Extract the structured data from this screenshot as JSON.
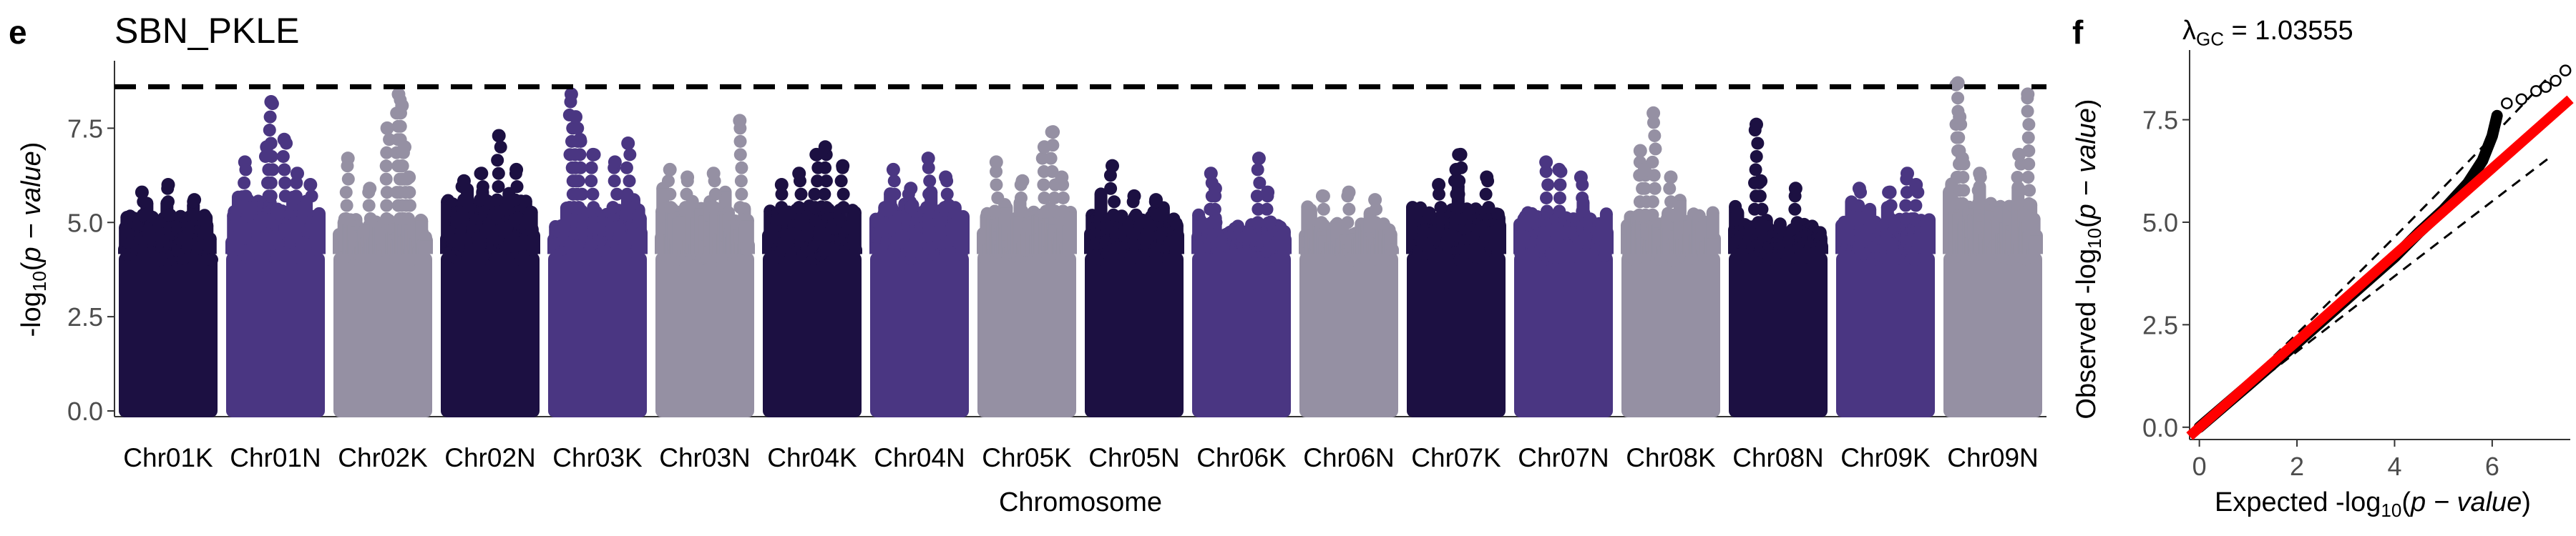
{
  "panel_e": {
    "letter": "e",
    "title": "SBN_PKLE"
  },
  "panel_f": {
    "letter": "f",
    "lambda_symbol": "λ",
    "lambda_sub": "GC",
    "lambda_value": " = 1.03555"
  },
  "chart_data": [
    {
      "type": "scatter",
      "subtype": "manhattan",
      "title": "SBN_PKLE",
      "xlabel": "Chromosome",
      "ylabel": "-log10(p − value)",
      "ylim": [
        0,
        9.1
      ],
      "yticks": [
        "0.0",
        "2.5",
        "5.0",
        "7.5"
      ],
      "threshold_line": 8.6,
      "colors": [
        "#1c1042",
        "#4a3682",
        "#9590a3"
      ],
      "categories": [
        "Chr01K",
        "Chr01N",
        "Chr02K",
        "Chr02N",
        "Chr03K",
        "Chr03N",
        "Chr04K",
        "Chr04N",
        "Chr05K",
        "Chr05N",
        "Chr06K",
        "Chr06N",
        "Chr07K",
        "Chr07N",
        "Chr08K",
        "Chr08N",
        "Chr09K",
        "Chr09N"
      ],
      "series": [
        {
          "values": [
            {
              "chrom": "Chr01K",
              "body_top": 5.2,
              "peaks": [
                [
                  0.2,
                  5.8
                ],
                [
                  0.5,
                  6.0
                ],
                [
                  0.8,
                  5.6
                ]
              ]
            },
            {
              "chrom": "Chr01N",
              "body_top": 5.7,
              "peaks": [
                [
                  0.15,
                  6.6
                ],
                [
                  0.4,
                  7.0
                ],
                [
                  0.45,
                  8.2
                ],
                [
                  0.6,
                  7.2
                ],
                [
                  0.75,
                  6.3
                ],
                [
                  0.9,
                  6.0
                ]
              ]
            },
            {
              "chrom": "Chr02K",
              "body_top": 5.1,
              "peaks": [
                [
                  0.1,
                  6.7
                ],
                [
                  0.35,
                  5.9
                ],
                [
                  0.55,
                  7.5
                ],
                [
                  0.68,
                  8.4
                ],
                [
                  0.72,
                  8.1
                ],
                [
                  0.75,
                  7.0
                ],
                [
                  0.8,
                  6.2
                ]
              ]
            },
            {
              "chrom": "Chr02N",
              "body_top": 5.6,
              "peaks": [
                [
                  0.2,
                  6.1
                ],
                [
                  0.4,
                  6.3
                ],
                [
                  0.6,
                  7.3
                ],
                [
                  0.8,
                  6.4
                ]
              ]
            },
            {
              "chrom": "Chr03K",
              "body_top": 5.4,
              "peaks": [
                [
                  0.2,
                  8.4
                ],
                [
                  0.25,
                  7.8
                ],
                [
                  0.3,
                  7.2
                ],
                [
                  0.45,
                  6.8
                ],
                [
                  0.7,
                  6.6
                ],
                [
                  0.85,
                  7.1
                ]
              ]
            },
            {
              "chrom": "Chr03N",
              "body_top": 5.4,
              "peaks": [
                [
                  0.1,
                  6.4
                ],
                [
                  0.3,
                  6.2
                ],
                [
                  0.6,
                  6.3
                ],
                [
                  0.9,
                  7.7
                ]
              ]
            },
            {
              "chrom": "Chr04K",
              "body_top": 5.4,
              "peaks": [
                [
                  0.15,
                  6.0
                ],
                [
                  0.35,
                  6.3
                ],
                [
                  0.55,
                  6.8
                ],
                [
                  0.65,
                  7.0
                ],
                [
                  0.85,
                  6.5
                ]
              ]
            },
            {
              "chrom": "Chr04N",
              "body_top": 5.4,
              "peaks": [
                [
                  0.2,
                  6.4
                ],
                [
                  0.4,
                  5.9
                ],
                [
                  0.6,
                  6.7
                ],
                [
                  0.8,
                  6.2
                ]
              ]
            },
            {
              "chrom": "Chr05K",
              "body_top": 5.3,
              "peaks": [
                [
                  0.15,
                  6.6
                ],
                [
                  0.45,
                  6.1
                ],
                [
                  0.7,
                  7.0
                ],
                [
                  0.8,
                  7.4
                ],
                [
                  0.9,
                  6.2
                ]
              ]
            },
            {
              "chrom": "Chr05N",
              "body_top": 5.2,
              "peaks": [
                [
                  0.25,
                  6.5
                ],
                [
                  0.5,
                  5.7
                ],
                [
                  0.75,
                  5.6
                ]
              ]
            },
            {
              "chrom": "Chr06K",
              "body_top": 5.0,
              "peaks": [
                [
                  0.15,
                  6.3
                ],
                [
                  0.2,
                  5.9
                ],
                [
                  0.7,
                  6.7
                ],
                [
                  0.8,
                  5.8
                ]
              ]
            },
            {
              "chrom": "Chr06N",
              "body_top": 5.0,
              "peaks": [
                [
                  0.2,
                  5.7
                ],
                [
                  0.5,
                  5.8
                ],
                [
                  0.8,
                  5.6
                ]
              ]
            },
            {
              "chrom": "Chr07K",
              "body_top": 5.4,
              "peaks": [
                [
                  0.3,
                  6.0
                ],
                [
                  0.5,
                  6.4
                ],
                [
                  0.55,
                  6.8
                ],
                [
                  0.85,
                  6.2
                ]
              ]
            },
            {
              "chrom": "Chr07N",
              "body_top": 5.3,
              "peaks": [
                [
                  0.3,
                  6.6
                ],
                [
                  0.45,
                  6.4
                ],
                [
                  0.7,
                  6.2
                ]
              ]
            },
            {
              "chrom": "Chr08K",
              "body_top": 5.2,
              "peaks": [
                [
                  0.15,
                  6.9
                ],
                [
                  0.2,
                  6.4
                ],
                [
                  0.3,
                  7.9
                ],
                [
                  0.5,
                  6.2
                ]
              ]
            },
            {
              "chrom": "Chr08N",
              "body_top": 5.0,
              "peaks": [
                [
                  0.25,
                  7.6
                ],
                [
                  0.3,
                  6.1
                ],
                [
                  0.7,
                  5.9
                ]
              ]
            },
            {
              "chrom": "Chr09K",
              "body_top": 5.1,
              "peaks": [
                [
                  0.2,
                  5.9
                ],
                [
                  0.55,
                  5.8
                ],
                [
                  0.75,
                  6.3
                ],
                [
                  0.85,
                  6.0
                ]
              ]
            },
            {
              "chrom": "Chr09N",
              "body_top": 5.5,
              "peaks": [
                [
                  0.1,
                  8.7
                ],
                [
                  0.12,
                  7.8
                ],
                [
                  0.15,
                  6.7
                ],
                [
                  0.35,
                  6.3
                ],
                [
                  0.8,
                  6.8
                ],
                [
                  0.9,
                  8.4
                ]
              ]
            }
          ]
        }
      ]
    },
    {
      "type": "scatter",
      "subtype": "qq",
      "title": "λGC = 1.03555",
      "xlabel": "Expected -log10(p − value)",
      "ylabel": "Observed -log10(p − value)",
      "xlim": [
        -0.2,
        7.6
      ],
      "ylim": [
        -0.3,
        9.2
      ],
      "xticks": [
        0,
        2,
        4,
        6
      ],
      "yticks": [
        "0.0",
        "2.5",
        "5.0",
        "7.5"
      ],
      "reference_line": {
        "color": "#ff0000"
      },
      "colors": {
        "points": "#000000",
        "ci": "#000000"
      },
      "series": [
        {
          "values": [
            [
              0,
              0
            ],
            [
              1,
              1.02
            ],
            [
              2,
              2.05
            ],
            [
              3,
              3.1
            ],
            [
              4,
              4.15
            ],
            [
              4.5,
              4.75
            ],
            [
              5,
              5.3
            ],
            [
              5.5,
              5.95
            ],
            [
              5.8,
              6.5
            ],
            [
              6,
              7.1
            ],
            [
              6.1,
              7.6
            ],
            [
              6.3,
              7.9
            ],
            [
              6.6,
              8.0
            ],
            [
              6.9,
              8.2
            ],
            [
              7.1,
              8.3
            ],
            [
              7.3,
              8.45
            ],
            [
              7.5,
              8.7
            ]
          ]
        }
      ]
    }
  ]
}
